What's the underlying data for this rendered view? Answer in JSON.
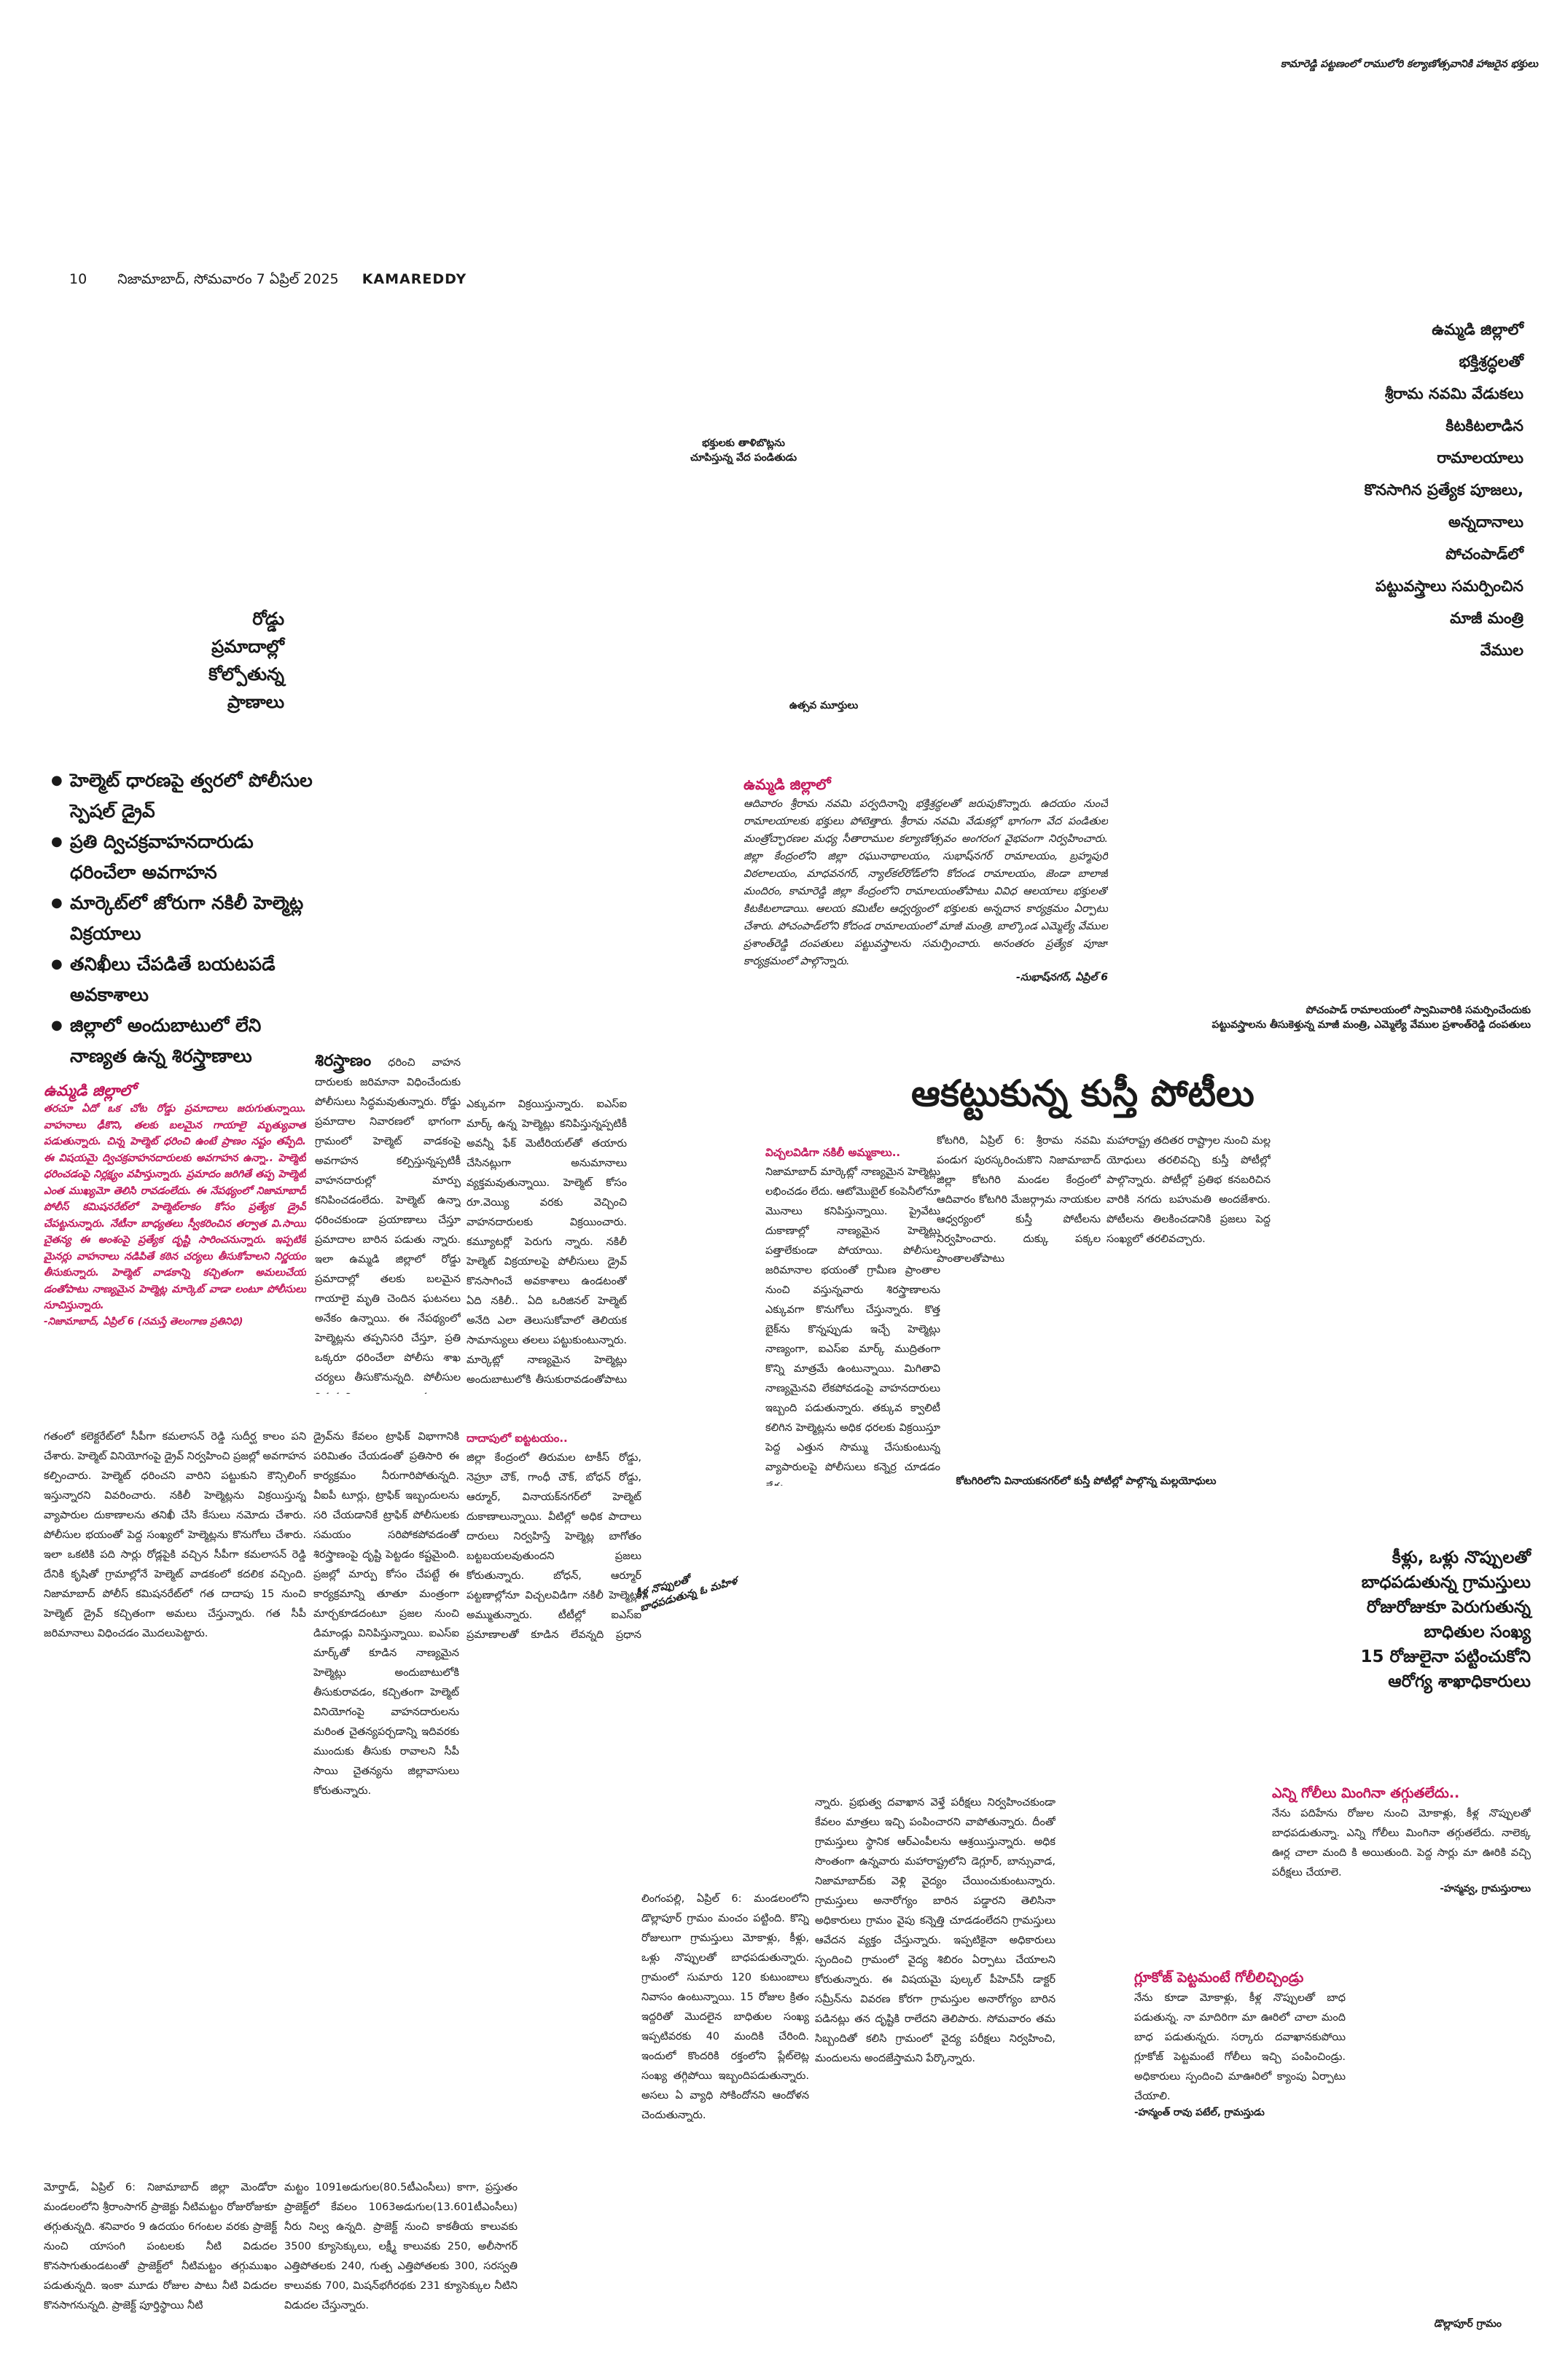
{
  "running_head": "కామారెడ్డి పట్టణంలో రాములోరి కల్యాణోత్సవానికి హాజరైన భక్తులు",
  "folio": {
    "page_no": "10",
    "dateline": "నిజామాబాద్, సోమవారం 7 ఏప్రిల్ 2025",
    "edition": "KAMAREDDY"
  },
  "photos": {
    "caption_devotees_line1": "భక్తులకు తాళిబొట్లను",
    "caption_devotees_line2": "చూపిస్తున్న వేద పండితుడు",
    "caption_idols": "ఉత్సవ మూర్తులు",
    "caption_minister_line1": "పోచంపాడ్ రామాలయంలో స్వామివారికి సమర్పించేందుకు",
    "caption_minister_line2": "పట్టువస్త్రాలను తీసుకెళ్తున్న మాజీ మంత్రి, ఎమ్మెల్యే వేముల ప్రశాంత్‌రెడ్డి దంపతులు",
    "caption_wrestling": "కోటగిరిలోని వినాయకనగర్‌లో కుస్తీ పోటీల్లో పాల్గొన్న మల్లయోధులు",
    "caption_patient": "కీళ్ల నొప్పులతో బాధపడుతున్న ఓ మహిళ",
    "caption_village": "డొల్లాపూర్ గ్రామం"
  },
  "story_rama": {
    "headline_lines": [
      "ఉమ్మడి జిల్లాలో",
      "భక్తిశ్రద్ధలతో",
      "శ్రీరామ నవమి వేడుకలు",
      "కిటకిటలాడిన",
      "రామాలయాలు",
      "కొనసాగిన ప్రత్యేక పూజలు,",
      "అన్నదానాలు",
      "పోచంపాడ్‌లో",
      "పట్టువస్త్రాలు సమర్పించిన",
      "మాజీ మంత్రి",
      "వేముల"
    ],
    "dateline": "ఉమ్మడి జిల్లాలో",
    "body": "ఆదివారం శ్రీరామ నవమి పర్వదినాన్ని భక్తిశ్రద్ధలతో జరుపుకొన్నారు. ఉదయం నుంచే రామాలయాలకు భక్తులు పోటెత్తారు. శ్రీరామ నవమి వేడుకల్లో భాగంగా వేద పండితుల మంత్రోచ్ఛారణల మధ్య సీతారాముల కల్యాణోత్సవం అంగరంగ వైభవంగా నిర్వహించారు. జిల్లా కేంద్రంలోని జిల్లా రఘునాథాలయం, సుభాష్‌నగర్ రామాలయం, బ్రహ్మపురి విఠలాలయం, మాధవనగర్, న్యాల్‌కల్‌రోడ్‌లోని కోదండ రామాలయం, జెండా బాలాజీ మందిరం, కామారెడ్డి జిల్లా కేంద్రంలోని రామాలయంతోపాటు వివిధ ఆలయాలు భక్తులతో కిటకిటలాడాయి. ఆలయ కమిటీల ఆధ్వర్యంలో భక్తులకు అన్నదాన కార్యక్రమం ఏర్పాటు చేశారు. పోచంపాడ్‌లోని కోదండ రామాలయంలో మాజీ మంత్రి, బాల్కొండ ఎమ్మెల్యే వేముల ప్రశాంత్‌రెడ్డి దంపతులు పట్టువస్త్రాలను సమర్పించారు. అనంతరం ప్రత్యేక పూజా కార్యక్రమంలో పాల్గొన్నారు.",
    "sign": "-సుభాష్‌నగర్, ఏప్రిల్ 6"
  },
  "story_roads": {
    "headline_lines": [
      "రోడ్డు",
      "ప్రమాదాల్లో",
      "కోల్పోతున్న",
      "ప్రాణాలు"
    ],
    "bullets": [
      "హెల్మెట్ ధారణపై త్వరలో పోలీసుల స్పెషల్ డ్రైవ్",
      "ప్రతి ద్విచక్రవాహనదారుడు ధరించేలా అవగాహన",
      "మార్కెట్‌లో జోరుగా నకిలీ హెల్మెట్ల విక్రయాలు",
      "తనిఖీలు చేపడితే బయటపడే అవకాశాలు",
      "జిల్లాలో అందుబాటులో లేని నాణ్యత ఉన్న శిరస్త్రాణాలు"
    ],
    "dateline": "ఉమ్మడి జిల్లాలో",
    "lead": "తరచూ ఏదో ఒక చోట రోడ్డు ప్రమాదాలు జరుగుతున్నాయి. వాహనాలు ఢీకొని, తలకు బలమైన గాయాలై మృత్యువాత పడుతున్నారు. చిన్న హెల్మెట్ ధరించి ఉంటే ప్రాణం నష్టం తప్పేది. ఈ విషయమై ద్విచక్రవాహనదారులకు అవగాహన ఉన్నా.. హెల్మెట్ ధరించడంపై నిర్లక్ష్యం వహిస్తున్నారు. ప్రమాదం జరిగితే తప్ప హెల్మెట్ ఎంత ముఖ్యమో తెలిసి రావడంలేదు. ఈ నేపథ్యంలో నిజామాబాద్ పోలీస్ కమిషనరేట్‌లో హెల్మెట్‌లాకం కోసం ప్రత్యేక డ్రైవ్ చేపట్టనున్నారు. నేటీనా బాధ్యతలు స్వీకరించిన తర్వాత వి.సాయి చైతన్య ఈ అంశంపై ప్రత్యేక దృష్టి సారించనున్నారు. ఇప్పటికే మైనర్లు వాహనాలు నడిపితే కఠిన చర్యలు తీసుకోవాలని నిర్ణయం తీసుకున్నారు. హెల్మెట్ వాడకాన్ని కచ్చితంగా అమలుచేయ డంతోపాటు నాణ్యమైన హెల్మెట్ల మార్కెట్ వాడా లంటూ పోలీసులు సూచిస్తున్నారు.",
    "sign": "-నిజామాబాద్, ఏప్రిల్ 6 (నమస్తే తెలంగాణ ప్రతినిధి)",
    "sub1": "శిరస్త్రాణం",
    "col2": "ధరించి వాహన దారులకు జరిమానా విధించేందుకు పోలీసులు సిద్ధమవుతున్నారు. రోడ్డు ప్రమాదాల నివారణలో భాగంగా గ్రామంలో హెల్మెట్ వాడకంపై అవగాహన కల్పిస్తున్నప్పటికీ వాహనదారుల్లో మార్పు కనిపించడంలేదు. హెల్మెట్ ఉన్నా ధరించకుండా ప్రయాణాలు చేస్తూ ప్రమాదాల బారిన పడుతు న్నారు. ఇలా ఉమ్మడి జిల్లాలో రోడ్డు ప్రమాదాల్లో తలకు బలమైన గాయాలై మృతి చెందిన ఘటనలు అనేకం ఉన్నాయి. ఈ నేపథ్యంలో హెల్మెట్లను తప్పనిసరి చేస్తూ, ప్రతి ఒక్కరూ ధరించేలా పోలీసు శాఖ చర్యలు తీసుకొనున్నది. పోలీసుల నిర్ణయాన్ని ప్రజలంతా స్వాగతిస్తున్నప్పటికీ ప్రస్తుతం మార్కెట్లో నాణ్యమైన హెల్మెట్లు అందుబాటులో లేవు. బోటాబోటిగా ఉన్న దుకాణాల్లో కనీస ప్రమాణాలు పాటించని",
    "col3": "ఎక్కువగా విక్రయిస్తున్నారు. ఐఎస్‌ఐ మార్క్ ఉన్న హెల్మెట్లు కనిపిస్తున్నప్పటికీ అవన్నీ ఫేక్ మెటీరియల్‌తో తయారు చేసినట్లుగా అనుమానాలు వ్యక్తమవుతున్నాయి. హెల్మెట్ కోసం రూ.వెయ్యి వరకు వెచ్చించి వాహనదారులకు విక్రయించారు. కమ్యూటర్లో పెరుగు న్నారు. నకిలీ హెల్మెట్ విక్రయాలపై పోలీసులు డ్రైవ్ కొనసాగించే అవకాశాలు ఉండటంతో ఏది నకిలీ.. ఏది ఒరిజినల్ హెల్మెట్ అనేది ఎలా తెలుసుకోవాలో తెలియక సామాన్యులు తలలు పట్టుకుంటున్నారు. మార్కెట్లో నాణ్యమైన హెల్మెట్లు అందుబాటులోకి తీసుకురావడంతోపాటు నకిలీ హెల్మెట్ల విక్రయదారులను నిరోధించాలని పోలీసులను ప్రజలు కోరుతున్నారు.",
    "sub2": "విచ్చలవిడిగా నకిలీ అమ్మకాలు..",
    "col4": "నిజామాబాద్ మార్కెట్లో నాణ్యమైన హెల్మెట్లు లభించడం లేదు. ఆటోమొబైల్ కంపెనీలోనూ మొనాలు కనిపిస్తున్నాయి. ప్రైవేటు దుకాణాల్లో నాణ్యమైన హెల్మెట్లు పత్తాలేకుండా పోయాయి. పోలీసుల జరిమానాల భయంతో గ్రామీణ ప్రాంతాల నుంచి వస్తున్నవారు శిరస్త్రాణాలను ఎక్కువగా కొనుగోలు చేస్తున్నారు. కొత్త బైక్‌ను కొన్నప్పుడు ఇచ్చే హెల్మెట్లు నాణ్యంగా, ఐఎస్‌ఐ మార్క్ ముద్రితంగా కొన్ని మాత్రమే ఉంటున్నాయి. మిగితావి నాణ్యమైనవి లేకపోవడంపై వాహనదారులు ఇబ్బంది పడుతున్నారు. తక్కువ క్వాలిటీ కలిగిన హెల్మెట్లను అధిక ధరలకు విక్రయిస్తూ పెద్ద ఎత్తున సొమ్ము చేసుకుంటున్న వ్యాపారులపై పోలీసులు కన్నెర్ర చూడడం లేదు.",
    "bottom1": "గతంలో కలెక్టరేట్‌లో సీపీగా కమలాసన్ రెడ్డి సుదీర్ఘ కాలం పని చేశారు. హెల్మెట్ వినియోగంపై డ్రైవ్ నిర్వహించి ప్రజల్లో అవగాహన కల్పించారు. హెల్మెట్ ధరించని వారిని పట్టుకుని కౌన్సిలింగ్ ఇస్తున్నారని వివరించారు. నకిలీ హెల్మెట్లను విక్రయిస్తున్న వ్యాపారుల దుకాణాలను తనిఖీ చేసి కేసులు నమోదు చేశారు. పోలీసుల భయంతో పెద్ద సంఖ్యలో హెల్మెట్లను కొనుగోలు చేశారు. ఇలా ఒకటికి పది సార్లు రోడ్లపైకి వచ్చిన సీపీగా కమలాసన్ రెడ్డి దేనికి కృషితో గ్రామాల్లోనే హెల్మెట్ వాడకంలో కదలిక వచ్చింది. నిజామాబాద్ పోలీస్ కమిషనరేట్‌లో గత దాదాపు 15 నుంచి హెల్మెట్ డ్రైవ్ కచ్చితంగా అమలు చేస్తున్నారు. గత సీపీ జరిమానాలు విధించడం మొదలుపెట్టారు.",
    "bottom2": "డ్రైవ్‌ను కేవలం ట్రాఫిక్ విభాగానికి పరిమితం చేయడంతో ప్రతిసారి ఈ కార్యక్రమం నీరుగారిపోతున్నది. వీఐపీ టూర్లు, ట్రాఫిక్ ఇబ్బందులను సరి చేయడానికే ట్రాఫిక్ పోలీసులకు సమయం సరిపోకపోవడంతో శిరస్త్రాణంపై దృష్టి పెట్టడం కష్టమైంది. ప్రజల్లో మార్పు కోసం చేపట్టే ఈ కార్యక్రమాన్ని తూతూ మంత్రంగా మార్చకూడదంటూ ప్రజల నుంచి డిమాండ్లు వినిపిస్తున్నాయి. ఐఎస్‌ఐ మార్క్‌తో కూడిన నాణ్యమైన హెల్మెట్లు అందుబాటులోకి తీసుకురావడం, కచ్చితంగా హెల్మెట్ వినియోగంపై వాహనదారులను మరింత చైతన్యపర్చడాన్ని ఇదివరకు ముందుకు తీసుకు రావాలని సీపీ సాయి చైతన్యను జిల్లావాసులు కోరుతున్నారు.",
    "sub3": "దాదాపులో ఐట్టటయం..",
    "bottom3": "జిల్లా కేంద్రంలో తిరుమల టాకీస్ రోడ్డు, నెహ్రూ చౌక్, గాంధీ చౌక్, బోధన్ రోడ్డు, ఆర్మూర్, వినాయక్‌నగర్‌లో హెల్మెట్ దుకాణాలున్నాయి. వీటిల్లో అధిక పాదాలు దారులు నిర్వహిస్తే హెల్మెట్ల బాగోతం బట్టబయలవుతుందని ప్రజలు కోరుతున్నారు. బోధన్, ఆర్మూర్ పట్టణాల్లోనూ విచ్చలవిడిగా నకిలీ హెల్మెట్లు అమ్ముతున్నారు. టీటీల్లో ఐఎస్‌ఐ ప్రమాణాలతో కూడిన లేవన్నది ప్రధాన ఆరోపణ."
  },
  "story_wrestling": {
    "headline": "ఆకట్టుకున్న కుస్తీ పోటీలు",
    "col1": "కోటగిరి, ఏప్రిల్ 6: శ్రీరామ నవమి పండుగ పురస్కరించుకొని నిజామాబాద్ జిల్లా కోటగిరి మండల కేంద్రంలో ఆదివారం కోటగిరి మేజర్గ్రామ నాయకుల ఆధ్వర్యంలో కుస్తీ పోటీలను నిర్వహించారు. దుక్కు పక్కల ప్రాంతాలతోపాటు",
    "col2": "మహారాష్ట్ర తదితర రాష్ట్రాల నుంచి మల్ల యోధులు తరలివచ్చి కుస్తీ పోటీల్లో పాల్గొన్నారు. పోటీల్లో ప్రతిభ కనబరిచిన వారికి నగదు బహుమతి అందజేశారు. పోటీలను తిలకించడానికి ప్రజలు పెద్ద సంఖ్యలో తరలివచ్చారు."
  },
  "story_health": {
    "headline_lines": [
      "కీళ్లు, ఒళ్లు నొప్పులతో",
      "బాధపడుతున్న గ్రామస్తులు",
      "రోజురోజుకూ పెరుగుతున్న",
      "బాధితుల సంఖ్య",
      "15 రోజులైనా పట్టించుకోని",
      "ఆరోగ్య శాఖాధికారులు"
    ],
    "col1": "లింగంపల్లి, ఏప్రిల్ 6: మండలంలోని డొల్లాపూర్ గ్రామం మంచం పట్టింది. కొన్ని రోజులుగా గ్రామస్తులు మోకాళ్లు, కీళ్లు, ఒళ్లు నొప్పులతో బాధపడుతున్నారు. గ్రామంలో సుమారు 120 కుటుంబాలు నివాసం ఉంటున్నాయి. 15 రోజుల క్రితం ఇద్దరితో మొదలైన బాధితుల సంఖ్య ఇప్పటివరకు 40 మందికి చేరింది. ఇందులో కొందరికి రక్తంలోని ప్లేట్‌లెట్ల సంఖ్య తగ్గిపోయి ఇబ్బందిపడుతున్నారు. అసలు ఏ వ్యాధి సోకిందోనని ఆందోళన చెందుతున్నారు.",
    "col2": "న్నారు. ప్రభుత్వ దవాఖాన వెళ్తే పరీక్షలు నిర్వహించకుండా కేవలం మాత్రలు ఇచ్చి పంపించారని వాపోతున్నారు. దీంతో గ్రామస్తులు స్థానిక ఆర్‌ఎంపీలను ఆశ్రయిస్తున్నారు. అధిక సొంతంగా ఉన్నవారు మహారాష్ట్రలోని డెగ్లూర్, బాన్సువాడ, నిజామాబాద్‌కు వెళ్లి వైద్యం చేయించుకుంటున్నారు. గ్రామస్తులు అనారోగ్యం బారిన పడ్డారని తెలిసినా అధికారులు గ్రామం వైపు కన్నెత్తి చూడడంలేదని గ్రామస్తులు ఆవేదన వ్యక్తం చేస్తున్నారు. ఇప్పటికైనా అధికారులు స్పందించి గ్రామంలో వైద్య శిబిరం ఏర్పాటు చేయాలని కోరుతున్నారు. ఈ విషయమై పుల్కల్ పీహెచ్‌సీ డాక్టర్ సమ్రీన్‌ను వివరణ కోరగా గ్రామస్తుల అనారోగ్యం బారిన పడినట్లు తన దృష్టికి రాలేదని తెలిపారు. సోమవారం తమ సిబ్బందితో కలిసి గ్రామంలో వైద్య పరీక్షలు నిర్వహించి, మందులను అందజేస్తామని పేర్కొన్నారు.",
    "quote1_head": "ఎన్ని గోలీలు మింగినా తగ్గుతలేదు..",
    "quote1_body": "నేను పదిహేను రోజుల నుంచి మోకాళ్లు, కీళ్ల నొప్పులతో బాధపడుతున్నా. ఎన్ని గోలీలు మింగినా తగ్గుతలేదు. నాలెక్క ఊర్ల చాలా మంది కి అయితుంది. పెద్ద సార్లు మా ఊరికి వచ్చి పరీక్షలు చేయాలె.",
    "quote1_sign": "-హన్మవ్వ, గ్రామస్తురాలు",
    "quote2_head": "గ్లూకోజ్ పెట్టమంటే గోలీలిచ్చిండ్రు",
    "quote2_body": "నేను కూడా మోకాళ్లు, కీళ్ల నొప్పులతో బాధ పడుతున్న. నా మాదిరిగా మా ఊరిలో చాలా మంది బాధ పడుతున్నరు. సర్కారు దవాఖానకుపోయి గ్లూకోజ్ పెట్టమంటే గోలీలు ఇచ్చి పంపించిండ్రు. అధికారులు స్పందించి మాఊరిలో క్యాంపు ఏర్పాటు చేయాలి.",
    "quote2_sign": "-హన్మంత్ రావు పటేల్, గ్రామస్తుడు"
  },
  "story_water": {
    "col1": "మోర్తాడ్, ఏప్రిల్ 6: నిజామాబాద్ జిల్లా మెండోరా మండలంలోని శ్రీరాంసాగర్ ప్రాజెక్టు నీటిమట్టం రోజురోజుకూ తగ్గుతున్నది. శనివారం 9 ఉదయం 6గంటల వరకు ప్రాజెక్ట్ నుంచి యాసంగి పంటలకు నీటి విడుదల కొనసాగుతుండటంతో ప్రాజెక్ట్‌లో నీటిమట్టం తగ్గుముఖం పడుతున్నది. ఇంకా మూడు రోజుల పాటు నీటి విడుదల కొనసాగనున్నది. ప్రాజెక్ట్ పూర్తిస్థాయి నీటి",
    "col2": "మట్టం 1091అడుగుల(80.5టీఎంసీలు) కాగా, ప్రస్తుతం ప్రాజెక్ట్‌లో కేవలం 1063అడుగుల(13.601టీఎంసీలు) నీరు నిల్వ ఉన్నది. ప్రాజెక్ట్ నుంచి కాకతీయ కాలువకు 3500 క్యూసెక్కులు, లక్ష్మీ కాలువకు 250, అలీసాగర్ ఎత్తిపోతలకు 240, గుత్ప ఎత్తిపోతలకు 300, సరస్వతి కాలువకు 700, మిషన్‌భగీరథకు 231 క్యూసెక్కుల నీటిని విడుదల చేస్తున్నారు."
  }
}
